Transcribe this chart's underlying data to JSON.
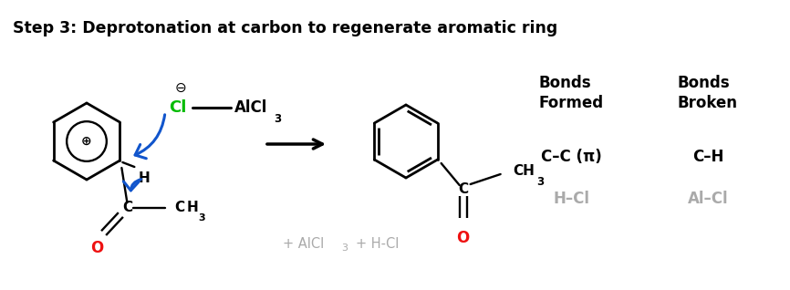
{
  "title": "Step 3: Deprotonation at carbon to regenerate aromatic ring",
  "bg_color": "#ffffff",
  "title_fontsize": 12.5,
  "bonds_formed_header": "Bonds\nFormed",
  "bonds_broken_header": "Bonds\nBroken",
  "bonds_formed_1": "C–C (π)",
  "bonds_formed_2": "H–Cl",
  "bonds_broken_1": "C–H",
  "bonds_broken_2": "Al–Cl",
  "blue_arrow_color": "#1155cc",
  "green_color": "#00bb00",
  "red_color": "#ee1111",
  "gray_color": "#aaaaaa",
  "black_color": "#000000",
  "lw": 1.7
}
